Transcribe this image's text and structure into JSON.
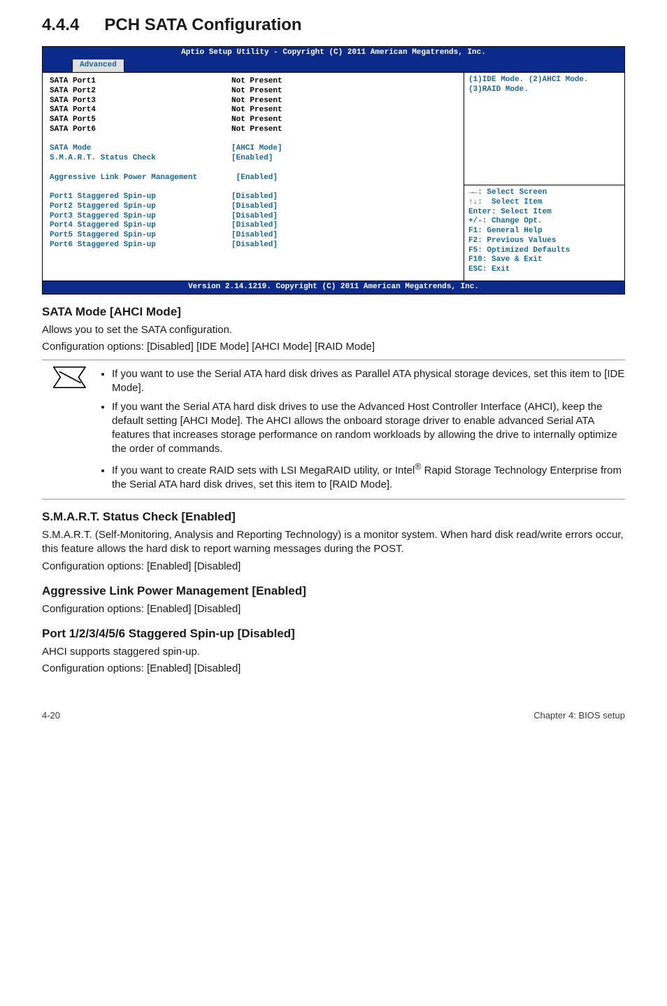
{
  "heading": {
    "num": "4.4.4",
    "title": "PCH SATA Configuration"
  },
  "bios": {
    "top_bar": "Aptio Setup Utility - Copyright (C) 2011 American Megatrends, Inc.",
    "tab": "Advanced",
    "ports": [
      {
        "label": "SATA Port1",
        "value": "Not Present"
      },
      {
        "label": "SATA Port2",
        "value": "Not Present"
      },
      {
        "label": "SATA Port3",
        "value": "Not Present"
      },
      {
        "label": "SATA Port4",
        "value": "Not Present"
      },
      {
        "label": "SATA Port5",
        "value": "Not Present"
      },
      {
        "label": "SATA Port6",
        "value": "Not Present"
      }
    ],
    "settings1": [
      {
        "label": "SATA Mode",
        "value": "[AHCI Mode]"
      },
      {
        "label": "S.M.A.R.T. Status Check",
        "value": "[Enabled]"
      }
    ],
    "agg_label": "Aggressive Link Power Management",
    "agg_value": "[Enabled]",
    "spinups": [
      {
        "label": "Port1 Staggered Spin-up",
        "value": "[Disabled]"
      },
      {
        "label": "Port2 Staggered Spin-up",
        "value": "[Disabled]"
      },
      {
        "label": "Port3 Staggered Spin-up",
        "value": "[Disabled]"
      },
      {
        "label": "Port4 Staggered Spin-up",
        "value": "[Disabled]"
      },
      {
        "label": "Port5 Staggered Spin-up",
        "value": "[Disabled]"
      },
      {
        "label": "Port6 Staggered Spin-up",
        "value": "[Disabled]"
      }
    ],
    "hint_line1": "(1)IDE Mode. (2)AHCI Mode.",
    "hint_line2": "(3)RAID Mode.",
    "keys": [
      "→←: Select Screen",
      "↑↓:  Select Item",
      "Enter: Select Item",
      "+/-: Change Opt.",
      "F1: General Help",
      "F2: Previous Values",
      "F5: Optimized Defaults",
      "F10: Save & Exit",
      "ESC: Exit"
    ],
    "bottom_bar": "Version 2.14.1219. Copyright (C) 2011 American Megatrends, Inc."
  },
  "sata_mode": {
    "title": "SATA Mode [AHCI Mode]",
    "p1": "Allows you to set the SATA configuration.",
    "p2": "Configuration options: [Disabled] [IDE Mode] [AHCI Mode] [RAID Mode]"
  },
  "notes": {
    "n1": "If you want to use the Serial ATA hard disk drives as Parallel ATA physical storage devices, set this item to [IDE Mode].",
    "n2": "If you want the Serial ATA hard disk drives to use the Advanced Host Controller Interface (AHCI), keep the default setting [AHCI Mode]. The AHCI allows the onboard storage driver to enable advanced Serial ATA features that increases storage performance on random workloads by allowing the drive to internally optimize the order of commands.",
    "n3a": "If you want to create RAID sets with LSI MegaRAID utility, or Intel",
    "n3sup": "®",
    "n3b": " Rapid Storage Technology Enterprise from the Serial ATA hard disk drives, set this item to [RAID Mode]."
  },
  "smart": {
    "title": "S.M.A.R.T. Status Check [Enabled]",
    "p1": "S.M.A.R.T. (Self-Monitoring, Analysis and Reporting Technology) is a monitor system. When hard disk read/write errors occur, this feature allows the hard disk to report warning messages during the POST.",
    "p2": "Configuration options: [Enabled] [Disabled]"
  },
  "agg": {
    "title": "Aggressive Link Power Management [Enabled]",
    "p1": "Configuration options: [Enabled] [Disabled]"
  },
  "stag": {
    "title": "Port 1/2/3/4/5/6 Staggered Spin-up [Disabled]",
    "p1": "AHCI supports staggered spin-up.",
    "p2": "Configuration options: [Enabled] [Disabled]"
  },
  "footer": {
    "left": "4-20",
    "right": "Chapter 4: BIOS setup"
  }
}
